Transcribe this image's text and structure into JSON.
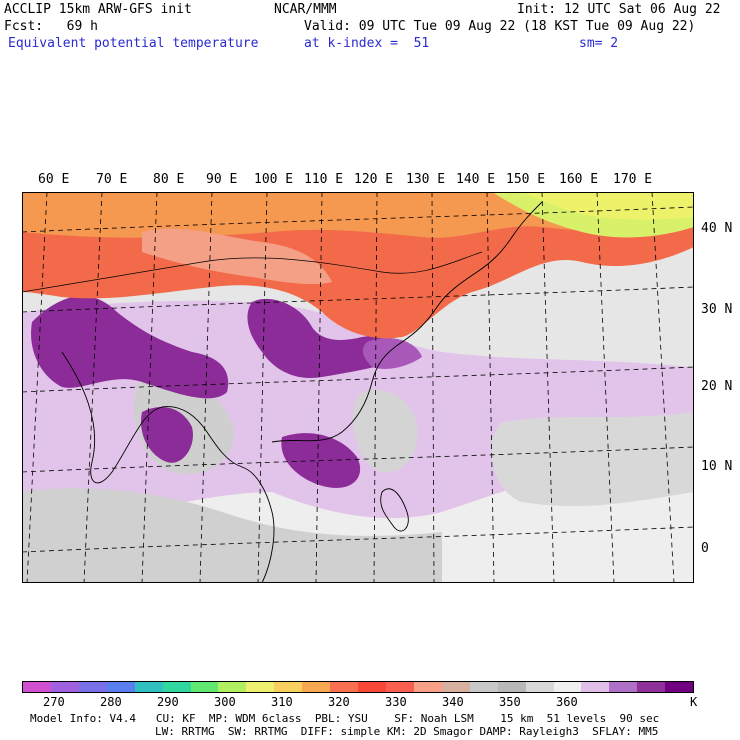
{
  "header": {
    "line1_left": "ACCLIP 15km ARW-GFS init",
    "line1_mid": "NCAR/MMM",
    "line1_right": "Init: 12 UTC Sat 06 Aug 22",
    "line2_left": "Fcst:   69 h",
    "line2_right": "Valid: 09 UTC Tue 09 Aug 22 (18 KST Tue 09 Aug 22)",
    "line3_left": "Equivalent potential temperature",
    "line3_mid": "at k-index =  51",
    "line3_right": "sm= 2"
  },
  "map": {
    "lon_labels": [
      "60 E",
      "70 E",
      "80 E",
      "90 E",
      "100 E",
      "110 E",
      "120 E",
      "130 E",
      "140 E",
      "150 E",
      "160 E",
      "170 E"
    ],
    "lat_labels": [
      "40 N",
      "30 N",
      "20 N",
      "10 N",
      "0"
    ]
  },
  "colorbar": {
    "colors": [
      "#d050d0",
      "#a060e0",
      "#7a70e8",
      "#5a80f0",
      "#30c0c0",
      "#30d8a0",
      "#60e870",
      "#b0f060",
      "#f0f070",
      "#f8d060",
      "#f8a850",
      "#f87050",
      "#f84838",
      "#f86050",
      "#f8a088",
      "#d8b0a0",
      "#c8c8c8",
      "#b8b8b8",
      "#d8d8d8",
      "#f0f0f0",
      "#e0c0e8",
      "#b070c8",
      "#90309a",
      "#700080"
    ],
    "ticks": [
      "270",
      "280",
      "290",
      "300",
      "310",
      "320",
      "330",
      "340",
      "350",
      "360"
    ],
    "unit": "K"
  },
  "model_info": {
    "line1": [
      "Model Info: V4.4",
      "CU: KF",
      "MP: WDM 6class",
      "PBL: YSU",
      "SF: Noah LSM",
      "15 km",
      "51 levels",
      "90 sec"
    ],
    "line2": [
      "LW: RRTMG",
      "SW: RRTMG",
      "DIFF: simple",
      "KM: 2D Smagor",
      "DAMP: Rayleigh3",
      "SFLAY: MM5"
    ]
  }
}
